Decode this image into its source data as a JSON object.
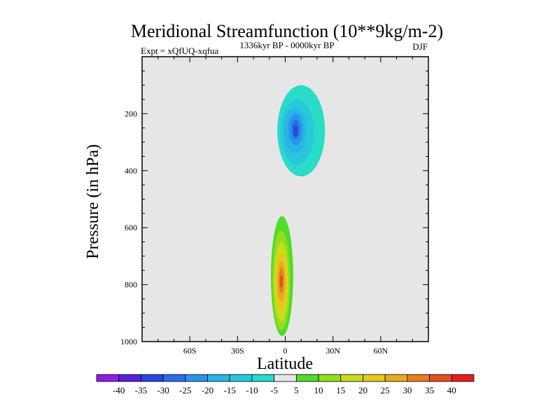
{
  "chart_data": {
    "type": "heatmap",
    "title": "Meridional Streamfunction (10**9kg/m-2)",
    "subtitle_left": "Expt = xQfUQ-xqfua",
    "subtitle_center": "1336kyr BP - 0000kyr BP",
    "subtitle_right": "DJF",
    "xlabel": "Latitude",
    "ylabel": "Pressure (in hPa)",
    "xlim": [
      -90,
      90
    ],
    "ylim": [
      1000,
      0
    ],
    "xticks": [
      {
        "value": -60,
        "label": "60S"
      },
      {
        "value": -30,
        "label": "30S"
      },
      {
        "value": 0,
        "label": "0"
      },
      {
        "value": 30,
        "label": "30N"
      },
      {
        "value": 60,
        "label": "60N"
      }
    ],
    "yticks": [
      {
        "value": 200,
        "label": "200"
      },
      {
        "value": 400,
        "label": "400"
      },
      {
        "value": 600,
        "label": "600"
      },
      {
        "value": 800,
        "label": "800"
      },
      {
        "value": 1000,
        "label": "1000"
      }
    ],
    "background_color": "#e6e6e6",
    "colorbar": {
      "labels": [
        "-40",
        "-35",
        "-30",
        "-25",
        "-20",
        "-15",
        "-10",
        "-5",
        "5",
        "10",
        "15",
        "20",
        "25",
        "30",
        "35",
        "40"
      ],
      "colors": [
        "#8c1ee6",
        "#5a1edc",
        "#2846dc",
        "#2a6ee6",
        "#2896e6",
        "#28b4e6",
        "#28c8dc",
        "#28dcc8",
        "#e6e6e6",
        "#50dc28",
        "#96dc1e",
        "#c8dc1e",
        "#e6c81e",
        "#e6aa1e",
        "#e67d1e",
        "#e6501e",
        "#e61e1e"
      ]
    },
    "features": [
      {
        "name": "nh-upper-negative-cell",
        "level": -5,
        "lat": [
          -5,
          25
        ],
        "p": [
          100,
          420
        ],
        "color_index": 7
      },
      {
        "name": "nh-upper-negative-cell",
        "level": -10,
        "lat": [
          -3,
          18
        ],
        "p": [
          150,
          380
        ],
        "color_index": 6
      },
      {
        "name": "nh-upper-negative-cell",
        "level": -15,
        "lat": [
          -1,
          13
        ],
        "p": [
          180,
          340
        ],
        "color_index": 5
      },
      {
        "name": "nh-upper-negative-cell",
        "level": -20,
        "lat": [
          2,
          11
        ],
        "p": [
          200,
          310
        ],
        "color_index": 4
      },
      {
        "name": "nh-upper-negative-cell",
        "level": -25,
        "lat": [
          4,
          9
        ],
        "p": [
          220,
          290
        ],
        "color_index": 3
      },
      {
        "name": "nh-upper-negative-core",
        "level": -30,
        "lat": [
          5,
          8
        ],
        "p": [
          240,
          280
        ],
        "color_index": 2
      },
      {
        "name": "lower-positive-cell",
        "level": 5,
        "lat": [
          -9,
          5
        ],
        "p": [
          560,
          980
        ],
        "color_index": 9
      },
      {
        "name": "lower-positive-cell",
        "level": 10,
        "lat": [
          -8,
          3
        ],
        "p": [
          610,
          960
        ],
        "color_index": 10
      },
      {
        "name": "lower-positive-cell",
        "level": 15,
        "lat": [
          -7,
          2
        ],
        "p": [
          650,
          930
        ],
        "color_index": 11
      },
      {
        "name": "lower-positive-cell",
        "level": 20,
        "lat": [
          -6,
          1
        ],
        "p": [
          690,
          890
        ],
        "color_index": 12
      },
      {
        "name": "lower-positive-cell",
        "level": 25,
        "lat": [
          -5,
          0
        ],
        "p": [
          720,
          860
        ],
        "color_index": 13
      },
      {
        "name": "lower-positive-cell",
        "level": 30,
        "lat": [
          -4,
          -1
        ],
        "p": [
          740,
          830
        ],
        "color_index": 14
      },
      {
        "name": "lower-positive-core",
        "level": 35,
        "lat": [
          -3.5,
          -1.5
        ],
        "p": [
          765,
          810
        ],
        "color_index": 15
      }
    ]
  }
}
